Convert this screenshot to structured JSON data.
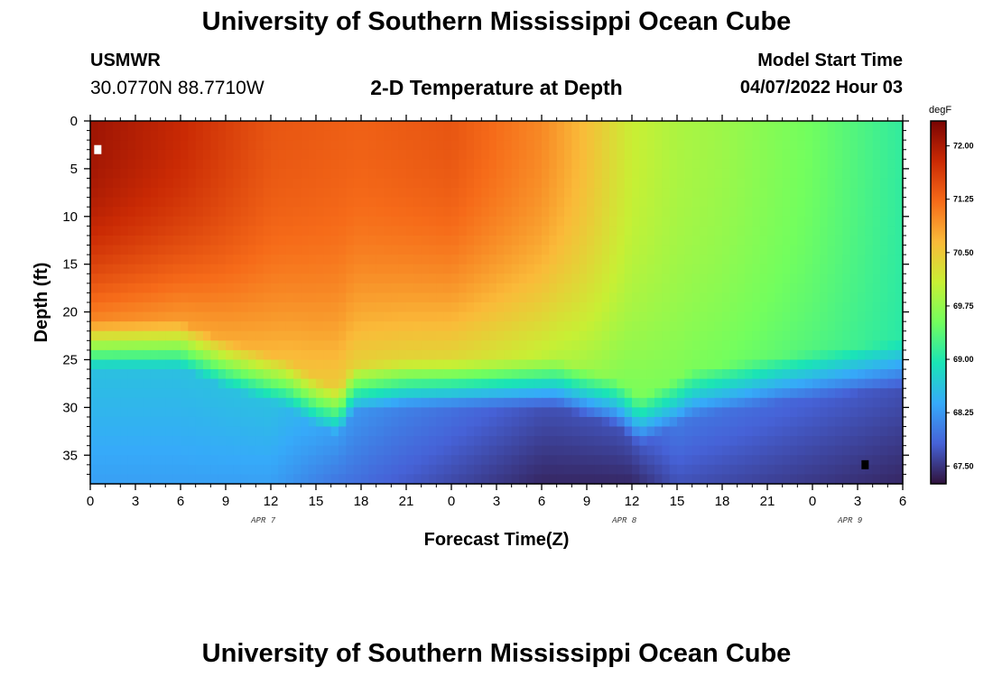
{
  "header": {
    "title": "University of Southern Mississippi Ocean Cube",
    "station": "USMWR",
    "coordinates": "30.0770N  88.7710W",
    "subtitle": "2-D Temperature at Depth",
    "model_start_label": "Model Start Time",
    "model_start_value": "04/07/2022 Hour 03"
  },
  "footer": {
    "title": "University of Southern Mississippi Ocean Cube"
  },
  "chart_data": {
    "type": "heatmap",
    "title": "2-D Temperature at Depth",
    "xlabel": "Forecast Time(Z)",
    "ylabel": "Depth (ft)",
    "x_range_hours": [
      0,
      54
    ],
    "y_range": [
      0,
      38
    ],
    "x_tick_labels": [
      "0",
      "3",
      "6",
      "9",
      "12",
      "15",
      "18",
      "21",
      "0",
      "3",
      "6",
      "9",
      "12",
      "15",
      "18",
      "21",
      "0",
      "3",
      "6"
    ],
    "y_ticks": [
      0,
      5,
      10,
      15,
      20,
      25,
      30,
      35
    ],
    "date_labels": [
      {
        "label": "APR 7",
        "hour": 11.5
      },
      {
        "label": "APR 8",
        "hour": 35.5
      },
      {
        "label": "APR 9",
        "hour": 50.5
      }
    ],
    "colorbar": {
      "unit": "degF",
      "min": 67.25,
      "max": 72.35,
      "ticks": [
        "72.00",
        "71.25",
        "70.50",
        "69.75",
        "69.00",
        "68.25",
        "67.50"
      ],
      "colors": [
        "#30123b",
        "#4662d7",
        "#36aaf9",
        "#1ae4b6",
        "#72fe5e",
        "#c8ef34",
        "#faba39",
        "#f66b19",
        "#ca2a04",
        "#7a0403"
      ]
    },
    "thermocline_depth_ft": [
      {
        "hour": 0,
        "depth": 23
      },
      {
        "hour": 6,
        "depth": 23
      },
      {
        "hour": 9,
        "depth": 25
      },
      {
        "hour": 13,
        "depth": 27
      },
      {
        "hour": 15,
        "depth": 29
      },
      {
        "hour": 16.5,
        "depth": 30
      },
      {
        "hour": 17.5,
        "depth": 27.5
      },
      {
        "hour": 21,
        "depth": 27
      },
      {
        "hour": 31,
        "depth": 27
      },
      {
        "hour": 33,
        "depth": 28
      },
      {
        "hour": 35,
        "depth": 29
      },
      {
        "hour": 36.5,
        "depth": 31
      },
      {
        "hour": 40,
        "depth": 28
      },
      {
        "hour": 46,
        "depth": 26.5
      },
      {
        "hour": 54,
        "depth": 25
      }
    ],
    "surface_core_temperature_degF": [
      {
        "hour": 0,
        "temp": 72.1
      },
      {
        "hour": 6,
        "temp": 71.8
      },
      {
        "hour": 12,
        "temp": 71.4
      },
      {
        "hour": 18,
        "temp": 71.3
      },
      {
        "hour": 24,
        "temp": 71.4
      },
      {
        "hour": 30,
        "temp": 71.0
      },
      {
        "hour": 33,
        "temp": 70.6
      },
      {
        "hour": 36,
        "temp": 70.1
      },
      {
        "hour": 39,
        "temp": 69.9
      },
      {
        "hour": 42,
        "temp": 69.8
      },
      {
        "hour": 48,
        "temp": 69.5
      },
      {
        "hour": 54,
        "temp": 69.1
      }
    ],
    "bottom_temperature_degF": [
      {
        "hour": 0,
        "temp": 68.3
      },
      {
        "hour": 12,
        "temp": 68.3
      },
      {
        "hour": 16,
        "temp": 68.0
      },
      {
        "hour": 20,
        "temp": 67.8
      },
      {
        "hour": 30,
        "temp": 67.4
      },
      {
        "hour": 36,
        "temp": 67.4
      },
      {
        "hour": 39,
        "temp": 67.7
      },
      {
        "hour": 54,
        "temp": 67.4
      }
    ],
    "markers": [
      {
        "color": "#ffffff",
        "hour": 0.5,
        "depth": 3
      },
      {
        "color": "#000000",
        "hour": 51.5,
        "depth": 36
      }
    ]
  }
}
